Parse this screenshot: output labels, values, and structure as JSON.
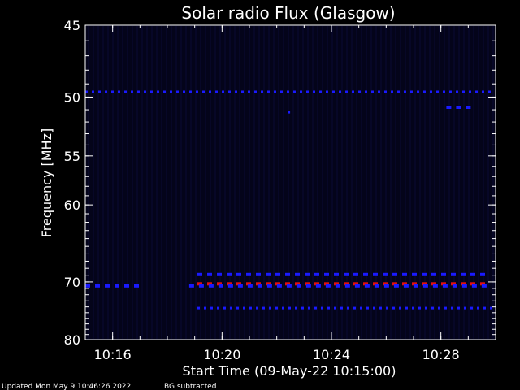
{
  "chart_data": {
    "type": "heatmap",
    "title": "Solar radio Flux (Glasgow)",
    "xlabel": "Start Time (09-May-22 10:15:00)",
    "ylabel": "Frequency [MHz]",
    "x_unit": "minutes after 10:15:00",
    "xlim": [
      0.0,
      15.0
    ],
    "ylim": [
      80,
      45
    ],
    "y_scale": "reciprocal",
    "xticks": [
      {
        "label": "10:16",
        "value": 1
      },
      {
        "label": "10:20",
        "value": 5
      },
      {
        "label": "10:24",
        "value": 9
      },
      {
        "label": "10:28",
        "value": 13
      }
    ],
    "yticks": [
      {
        "label": "45",
        "value": 45
      },
      {
        "label": "50",
        "value": 50
      },
      {
        "label": "55",
        "value": 55
      },
      {
        "label": "60",
        "value": 60
      },
      {
        "label": "70",
        "value": 70
      },
      {
        "label": "80",
        "value": 80
      }
    ],
    "background_color": "#04041a",
    "emission_lines": [
      {
        "freq_mhz": 49.6,
        "t_start": 0.0,
        "t_end": 14.95,
        "color": "#1a1aff",
        "style": "dotted"
      },
      {
        "freq_mhz": 51.2,
        "t_start": 7.4,
        "t_end": 7.6,
        "color": "#1a1aff",
        "style": "dotted"
      },
      {
        "freq_mhz": 50.8,
        "t_start": 13.2,
        "t_end": 14.2,
        "color": "#1a1aff",
        "style": "dashed"
      },
      {
        "freq_mhz": 68.9,
        "t_start": 4.1,
        "t_end": 14.95,
        "color": "#1a1aff",
        "style": "dashed"
      },
      {
        "freq_mhz": 70.3,
        "t_start": 4.1,
        "t_end": 14.95,
        "color": "#e01010",
        "style": "dashed"
      },
      {
        "freq_mhz": 70.6,
        "t_start": 0.0,
        "t_end": 2.1,
        "color": "#1a1aff",
        "style": "dashed"
      },
      {
        "freq_mhz": 70.6,
        "t_start": 3.8,
        "t_end": 14.95,
        "color": "#1a1aff",
        "style": "dashed"
      },
      {
        "freq_mhz": 74.2,
        "t_start": 4.1,
        "t_end": 14.95,
        "color": "#1a1aff",
        "style": "dotted"
      }
    ]
  },
  "footer": {
    "updated": "Updated Mon May  9 10:46:26 2022",
    "note": "BG subtracted"
  }
}
